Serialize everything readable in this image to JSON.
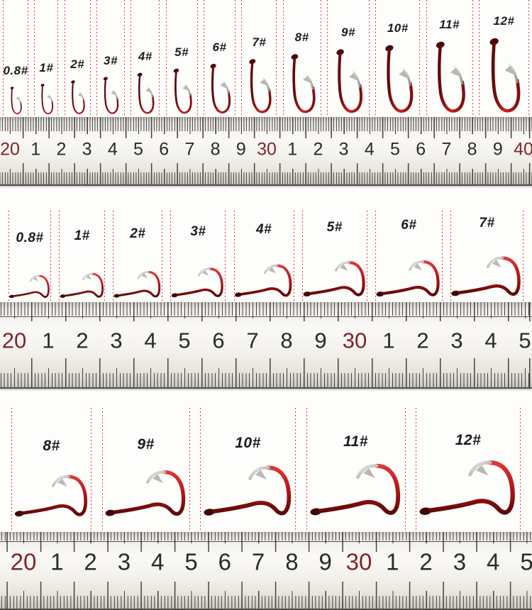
{
  "hook_rows": {
    "top": {
      "orientation": "hanging-vertical",
      "labels": [
        "0.8#",
        "1#",
        "2#",
        "3#",
        "4#",
        "5#",
        "6#",
        "7#",
        "8#",
        "9#",
        "10#",
        "11#",
        "12#"
      ]
    },
    "middle": {
      "orientation": "lying-horizontal",
      "labels": [
        "0.8#",
        "1#",
        "2#",
        "3#",
        "4#",
        "5#",
        "6#",
        "7#"
      ]
    },
    "bottom": {
      "orientation": "lying-horizontal",
      "labels": [
        "8#",
        "9#",
        "10#",
        "11#",
        "12#"
      ]
    }
  },
  "rulers": {
    "top": {
      "unit": "cm",
      "numbers": [
        "20",
        "1",
        "2",
        "3",
        "4",
        "5",
        "6",
        "7",
        "8",
        "9",
        "30",
        "1",
        "2",
        "3",
        "4",
        "5",
        "6",
        "7",
        "8",
        "9",
        "40"
      ],
      "red_indices": [
        0,
        10,
        20
      ]
    },
    "middle": {
      "unit": "cm",
      "numbers": [
        "20",
        "1",
        "2",
        "3",
        "4",
        "5",
        "6",
        "7",
        "8",
        "9",
        "30",
        "1",
        "2",
        "3",
        "4",
        "5"
      ],
      "red_indices": [
        0,
        10
      ]
    },
    "bottom": {
      "unit": "cm",
      "numbers": [
        "20",
        "1",
        "2",
        "3",
        "4",
        "5",
        "6",
        "7",
        "8",
        "9",
        "30",
        "1",
        "2",
        "3",
        "4",
        "5"
      ],
      "red_indices": [
        0,
        10
      ]
    }
  },
  "colors": {
    "hook_red": "#b41515",
    "hook_red_dark": "#5c0808",
    "hook_point_silver": "#c9c8c3",
    "hook_eye": "#3f0606",
    "guide_dotted_line": "#e02525",
    "ruler_tick": "#45423d",
    "ruler_number_black": "#2a2a2a",
    "ruler_number_red": "#842428",
    "background": "#fdfdfc"
  }
}
